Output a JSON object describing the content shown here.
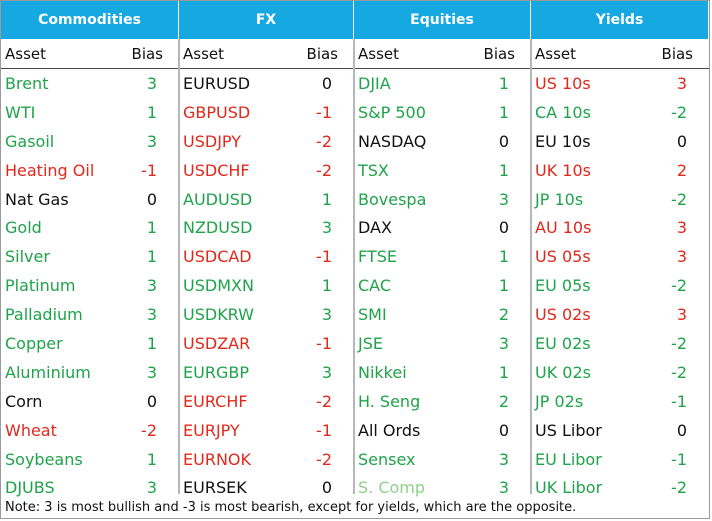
{
  "colors": {
    "header_bg": "#16a8e0",
    "bull": "#1fa34a",
    "bear": "#e0281b",
    "neutral": "#111111",
    "light_green": "#8fd18a"
  },
  "columns": [
    {
      "title": "Commodities",
      "asset_header": "Asset",
      "bias_header": "Bias",
      "rows": [
        {
          "asset": "Brent",
          "bias": "3",
          "color": "#1fa34a"
        },
        {
          "asset": "WTI",
          "bias": "1",
          "color": "#1fa34a"
        },
        {
          "asset": "Gasoil",
          "bias": "3",
          "color": "#1fa34a"
        },
        {
          "asset": "Heating Oil",
          "bias": "-1",
          "color": "#e0281b"
        },
        {
          "asset": "Nat Gas",
          "bias": "0",
          "color": "#111111"
        },
        {
          "asset": "Gold",
          "bias": "1",
          "color": "#1fa34a"
        },
        {
          "asset": "Silver",
          "bias": "1",
          "color": "#1fa34a"
        },
        {
          "asset": "Platinum",
          "bias": "3",
          "color": "#1fa34a"
        },
        {
          "asset": "Palladium",
          "bias": "3",
          "color": "#1fa34a"
        },
        {
          "asset": "Copper",
          "bias": "1",
          "color": "#1fa34a"
        },
        {
          "asset": "Aluminium",
          "bias": "3",
          "color": "#1fa34a"
        },
        {
          "asset": "Corn",
          "bias": "0",
          "color": "#111111"
        },
        {
          "asset": "Wheat",
          "bias": "-2",
          "color": "#e0281b"
        },
        {
          "asset": "Soybeans",
          "bias": "1",
          "color": "#1fa34a"
        },
        {
          "asset": "DJUBS",
          "bias": "3",
          "color": "#1fa34a"
        }
      ]
    },
    {
      "title": "FX",
      "asset_header": "Asset",
      "bias_header": "Bias",
      "rows": [
        {
          "asset": "EURUSD",
          "bias": "0",
          "color": "#111111"
        },
        {
          "asset": "GBPUSD",
          "bias": "-1",
          "color": "#e0281b"
        },
        {
          "asset": "USDJPY",
          "bias": "-2",
          "color": "#e0281b"
        },
        {
          "asset": "USDCHF",
          "bias": "-2",
          "color": "#e0281b"
        },
        {
          "asset": "AUDUSD",
          "bias": "1",
          "color": "#1fa34a"
        },
        {
          "asset": "NZDUSD",
          "bias": "3",
          "color": "#1fa34a"
        },
        {
          "asset": "USDCAD",
          "bias": "-1",
          "color": "#e0281b"
        },
        {
          "asset": "USDMXN",
          "bias": "1",
          "color": "#1fa34a"
        },
        {
          "asset": "USDKRW",
          "bias": "3",
          "color": "#1fa34a"
        },
        {
          "asset": "USDZAR",
          "bias": "-1",
          "color": "#e0281b"
        },
        {
          "asset": "EURGBP",
          "bias": "3",
          "color": "#1fa34a"
        },
        {
          "asset": "EURCHF",
          "bias": "-2",
          "color": "#e0281b"
        },
        {
          "asset": "EURJPY",
          "bias": "-1",
          "color": "#e0281b"
        },
        {
          "asset": "EURNOK",
          "bias": "-2",
          "color": "#e0281b"
        },
        {
          "asset": "EURSEK",
          "bias": "0",
          "color": "#111111"
        }
      ]
    },
    {
      "title": "Equities",
      "asset_header": "Asset",
      "bias_header": "Bias",
      "rows": [
        {
          "asset": "DJIA",
          "bias": "1",
          "color": "#1fa34a"
        },
        {
          "asset": "S&P 500",
          "bias": "1",
          "color": "#1fa34a"
        },
        {
          "asset": "NASDAQ",
          "bias": "0",
          "color": "#111111"
        },
        {
          "asset": "TSX",
          "bias": "1",
          "color": "#1fa34a"
        },
        {
          "asset": "Bovespa",
          "bias": "3",
          "color": "#1fa34a"
        },
        {
          "asset": "DAX",
          "bias": "0",
          "color": "#111111"
        },
        {
          "asset": "FTSE",
          "bias": "1",
          "color": "#1fa34a"
        },
        {
          "asset": "CAC",
          "bias": "1",
          "color": "#1fa34a"
        },
        {
          "asset": "SMI",
          "bias": "2",
          "color": "#1fa34a"
        },
        {
          "asset": "JSE",
          "bias": "3",
          "color": "#1fa34a"
        },
        {
          "asset": "Nikkei",
          "bias": "1",
          "color": "#1fa34a"
        },
        {
          "asset": "H. Seng",
          "bias": "2",
          "color": "#1fa34a"
        },
        {
          "asset": "All Ords",
          "bias": "0",
          "color": "#111111"
        },
        {
          "asset": "Sensex",
          "bias": "3",
          "color": "#1fa34a"
        },
        {
          "asset": "S. Comp",
          "bias": "3",
          "color": "#8fd18a",
          "bias_color": "#1fa34a"
        }
      ]
    },
    {
      "title": "Yields",
      "asset_header": "Asset",
      "bias_header": "Bias",
      "rows": [
        {
          "asset": "US 10s",
          "bias": "3",
          "color": "#e0281b"
        },
        {
          "asset": "CA 10s",
          "bias": "-2",
          "color": "#1fa34a"
        },
        {
          "asset": "EU 10s",
          "bias": "0",
          "color": "#111111"
        },
        {
          "asset": "UK 10s",
          "bias": "2",
          "color": "#e0281b"
        },
        {
          "asset": "JP 10s",
          "bias": "-2",
          "color": "#1fa34a"
        },
        {
          "asset": "AU 10s",
          "bias": "3",
          "color": "#e0281b"
        },
        {
          "asset": "US 05s",
          "bias": "3",
          "color": "#e0281b"
        },
        {
          "asset": "EU 05s",
          "bias": "-2",
          "color": "#1fa34a"
        },
        {
          "asset": "US 02s",
          "bias": "3",
          "color": "#e0281b"
        },
        {
          "asset": "EU 02s",
          "bias": "-2",
          "color": "#1fa34a"
        },
        {
          "asset": "UK 02s",
          "bias": "-2",
          "color": "#1fa34a"
        },
        {
          "asset": "JP 02s",
          "bias": "-1",
          "color": "#1fa34a"
        },
        {
          "asset": "US Libor",
          "bias": "0",
          "color": "#111111"
        },
        {
          "asset": "EU Libor",
          "bias": "-1",
          "color": "#1fa34a"
        },
        {
          "asset": "UK Libor",
          "bias": "-2",
          "color": "#1fa34a"
        }
      ]
    }
  ],
  "note": "Note: 3 is most bullish and -3 is most bearish, except for yields, which are the opposite."
}
